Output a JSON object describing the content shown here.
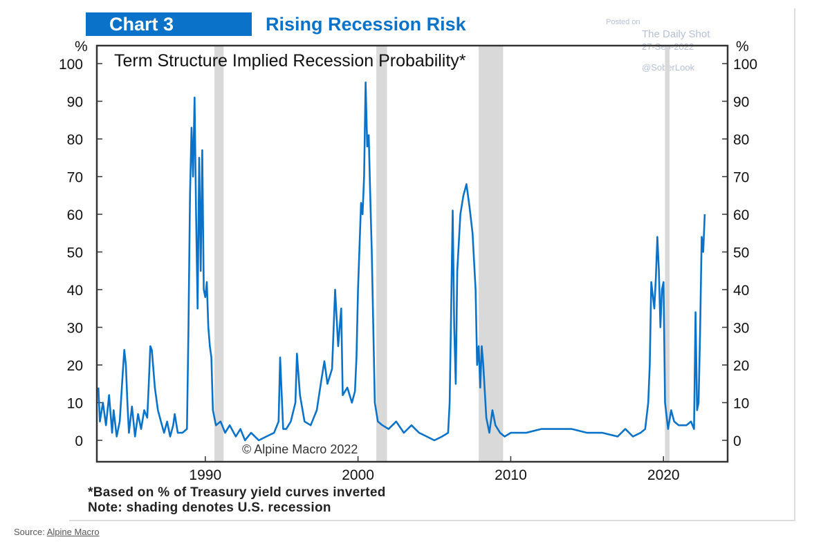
{
  "header": {
    "badge": "Chart 3",
    "title": "Rising Recession Risk"
  },
  "watermark": {
    "line1": "Posted on",
    "line2": "The Daily Shot",
    "line3": "27-Sep-2022",
    "line4": "@SoberLook"
  },
  "footnotes": {
    "note1": "*Based on % of Treasury yield curves inverted",
    "note2": "Note: shading denotes U.S. recession"
  },
  "source": {
    "label": "Source:",
    "link": "Alpine Macro"
  },
  "colors": {
    "brand": "#0a73c9",
    "line": "#0a73c9",
    "recession": "#d9d9d9"
  },
  "chart_data": {
    "type": "line",
    "title": "Term Structure Implied Recession Probability*",
    "copyright": "© Alpine Macro 2022",
    "ylabel_left": "%",
    "ylabel_right": "%",
    "ylim": [
      0,
      100
    ],
    "xlim": [
      1982.9,
      2024.2
    ],
    "yticks": [
      0,
      10,
      20,
      30,
      40,
      50,
      60,
      70,
      80,
      90,
      100
    ],
    "xticks": [
      1990,
      2000,
      2010,
      2020
    ],
    "grid": false,
    "recessions": [
      [
        1990.6,
        1991.2
      ],
      [
        2001.2,
        2001.9
      ],
      [
        2007.9,
        2009.5
      ],
      [
        2020.1,
        2020.4
      ]
    ],
    "series": [
      {
        "x": [
          1983.0,
          1983.1,
          1983.3,
          1983.5,
          1983.7,
          1983.9,
          1984.0,
          1984.2,
          1984.4,
          1984.6,
          1984.7,
          1984.8,
          1984.9,
          1985.0,
          1985.2,
          1985.4,
          1985.6,
          1985.8,
          1986.0,
          1986.2,
          1986.3,
          1986.4,
          1986.5,
          1986.7,
          1986.9,
          1987.1,
          1987.3,
          1987.5,
          1987.7,
          1987.9,
          1988.0,
          1988.2,
          1988.5,
          1988.8,
          1988.9,
          1989.0,
          1989.1,
          1989.2,
          1989.3,
          1989.4,
          1989.5,
          1989.6,
          1989.7,
          1989.8,
          1989.9,
          1990.0,
          1990.1,
          1990.2,
          1990.3,
          1990.4,
          1990.5,
          1990.7,
          1991.0,
          1991.3,
          1991.6,
          1992.0,
          1992.3,
          1992.6,
          1993.0,
          1993.5,
          1994.0,
          1994.5,
          1994.8,
          1994.9,
          1995.1,
          1995.3,
          1995.6,
          1995.9,
          1996.0,
          1996.2,
          1996.5,
          1996.9,
          1997.3,
          1997.6,
          1997.8,
          1998.0,
          1998.3,
          1998.5,
          1998.7,
          1998.9,
          1999.0,
          1999.3,
          1999.6,
          1999.8,
          1999.9,
          2000.0,
          2000.2,
          2000.3,
          2000.4,
          2000.5,
          2000.6,
          2000.7,
          2000.8,
          2000.9,
          2001.0,
          2001.1,
          2001.3,
          2001.6,
          2002.0,
          2002.5,
          2003.0,
          2003.5,
          2004.0,
          2004.5,
          2005.0,
          2005.5,
          2005.9,
          2006.0,
          2006.1,
          2006.2,
          2006.3,
          2006.4,
          2006.5,
          2006.7,
          2006.9,
          2007.1,
          2007.3,
          2007.5,
          2007.7,
          2007.8,
          2007.9,
          2008.0,
          2008.1,
          2008.2,
          2008.4,
          2008.6,
          2008.8,
          2009.0,
          2009.3,
          2009.6,
          2010.0,
          2011.0,
          2012.0,
          2013.0,
          2014.0,
          2015.0,
          2016.0,
          2017.0,
          2017.5,
          2018.0,
          2018.5,
          2018.8,
          2019.0,
          2019.1,
          2019.2,
          2019.4,
          2019.5,
          2019.6,
          2019.7,
          2019.8,
          2019.9,
          2020.0,
          2020.1,
          2020.3,
          2020.5,
          2020.7,
          2021.0,
          2021.5,
          2021.8,
          2022.0,
          2022.1,
          2022.2,
          2022.3,
          2022.4,
          2022.5,
          2022.6,
          2022.7
        ],
        "y": [
          14,
          5,
          10,
          4,
          12,
          2,
          8,
          1,
          5,
          18,
          24,
          20,
          10,
          2,
          9,
          1,
          7,
          3,
          8,
          6,
          15,
          25,
          24,
          14,
          8,
          5,
          2,
          5,
          1,
          4,
          7,
          2,
          2,
          3,
          30,
          65,
          83,
          70,
          91,
          60,
          35,
          75,
          45,
          77,
          40,
          38,
          42,
          30,
          25,
          22,
          8,
          4,
          5,
          2,
          4,
          1,
          3,
          0,
          2,
          0,
          1,
          2,
          5,
          22,
          3,
          3,
          5,
          10,
          23,
          12,
          5,
          4,
          8,
          16,
          21,
          15,
          19,
          40,
          25,
          35,
          12,
          14,
          10,
          13,
          22,
          40,
          63,
          60,
          70,
          95,
          78,
          81,
          65,
          50,
          30,
          10,
          5,
          4,
          3,
          5,
          2,
          4,
          2,
          1,
          0,
          1,
          2,
          10,
          35,
          61,
          30,
          15,
          45,
          60,
          65,
          68,
          62,
          55,
          40,
          20,
          25,
          14,
          25,
          20,
          6,
          2,
          8,
          4,
          2,
          1,
          2,
          2,
          3,
          3,
          3,
          2,
          2,
          1,
          3,
          1,
          2,
          3,
          10,
          20,
          42,
          35,
          43,
          54,
          45,
          30,
          40,
          42,
          10,
          3,
          8,
          5,
          4,
          4,
          5,
          3,
          34,
          8,
          10,
          30,
          54,
          50,
          60
        ]
      }
    ]
  }
}
